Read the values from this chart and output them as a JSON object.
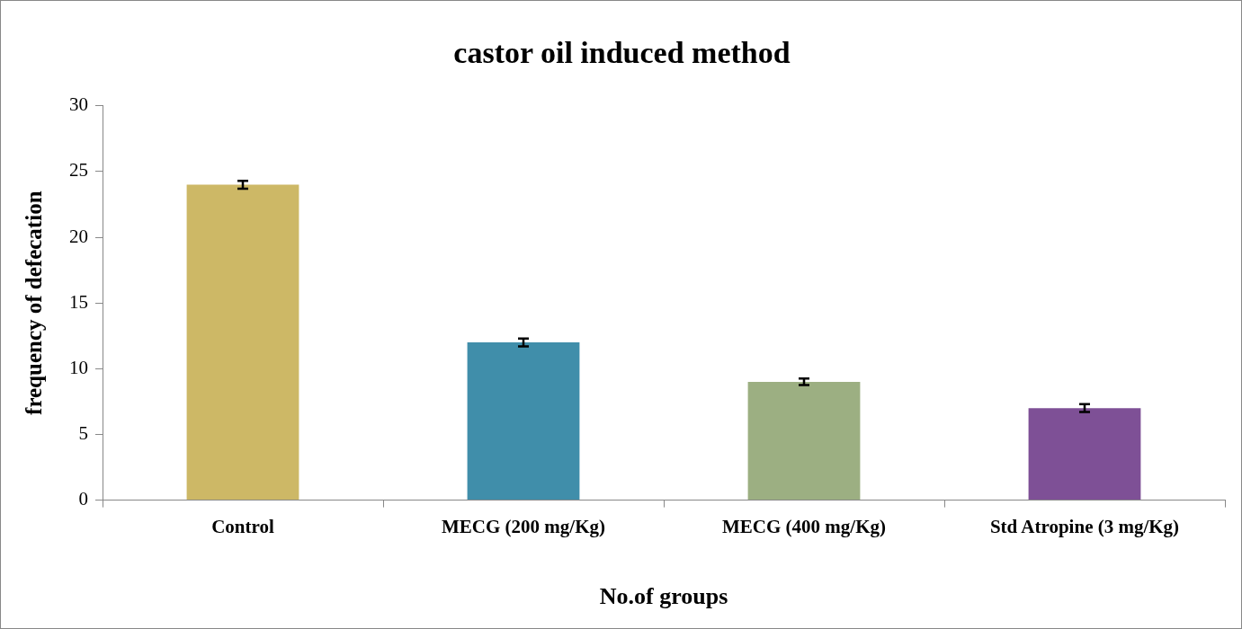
{
  "chart_data": {
    "type": "bar",
    "title": "castor oil induced method",
    "xlabel": "No.of groups",
    "ylabel": "frequency of defecation",
    "categories": [
      "Control",
      "MECG (200 mg/Kg)",
      "MECG (400 mg/Kg)",
      "Std Atropine (3 mg/Kg)"
    ],
    "values": [
      24,
      12,
      9,
      7
    ],
    "errors": [
      0.3,
      0.3,
      0.25,
      0.3
    ],
    "colors": [
      "#cdb866",
      "#408eaa",
      "#9caf82",
      "#7e5096"
    ],
    "ylim": [
      0,
      30
    ],
    "yticks": [
      0,
      5,
      10,
      15,
      20,
      25,
      30
    ],
    "grid": false,
    "legend": false
  }
}
